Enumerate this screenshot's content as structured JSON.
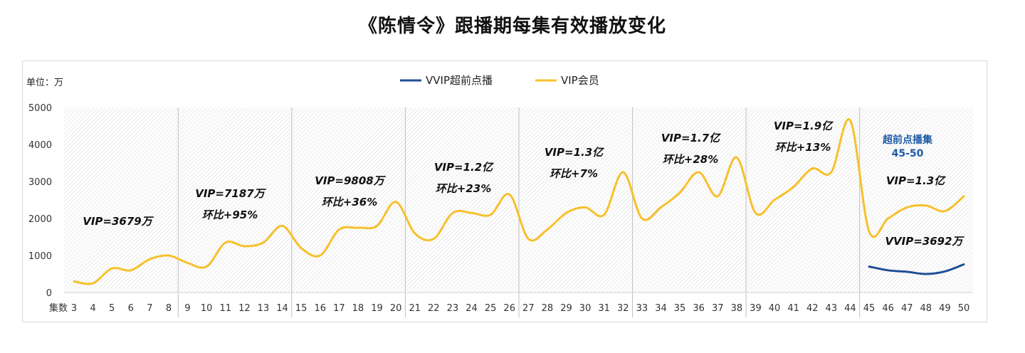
{
  "title": "《陈情令》跟播期每集有效播放变化",
  "chart_data": {
    "type": "line",
    "unit_label": "单位：万",
    "xlabel_prefix": "集数",
    "ylim": [
      0,
      5000
    ],
    "yticks": [
      0,
      1000,
      2000,
      3000,
      4000,
      5000
    ],
    "legend": {
      "placement": "top-center"
    },
    "categories": [
      3,
      4,
      5,
      6,
      7,
      8,
      9,
      10,
      11,
      12,
      13,
      14,
      15,
      16,
      17,
      18,
      19,
      20,
      21,
      22,
      23,
      24,
      25,
      26,
      27,
      28,
      29,
      30,
      31,
      32,
      33,
      34,
      35,
      36,
      37,
      38,
      39,
      40,
      41,
      42,
      43,
      44,
      45,
      46,
      47,
      48,
      49,
      50
    ],
    "series": [
      {
        "name": "VVIP超前点播",
        "color": "#1f4e96",
        "values": [
          null,
          null,
          null,
          null,
          null,
          null,
          null,
          null,
          null,
          null,
          null,
          null,
          null,
          null,
          null,
          null,
          null,
          null,
          null,
          null,
          null,
          null,
          null,
          null,
          null,
          null,
          null,
          null,
          null,
          null,
          null,
          null,
          null,
          null,
          null,
          null,
          null,
          null,
          null,
          null,
          null,
          null,
          700,
          600,
          560,
          500,
          570,
          760
        ]
      },
      {
        "name": "VIP会员",
        "color": "#f7c02c",
        "values": [
          300,
          250,
          650,
          600,
          900,
          1000,
          800,
          700,
          1350,
          1250,
          1350,
          1800,
          1200,
          1000,
          1700,
          1750,
          1800,
          2450,
          1600,
          1450,
          2150,
          2150,
          2100,
          2650,
          1450,
          1700,
          2150,
          2300,
          2100,
          3250,
          2000,
          2300,
          2700,
          3250,
          2600,
          3650,
          2150,
          2500,
          2850,
          3350,
          3250,
          4650,
          1650,
          2000,
          2300,
          2350,
          2200,
          2600
        ]
      }
    ],
    "group_boundaries_after": [
      8,
      14,
      20,
      26,
      32,
      38,
      44
    ],
    "annotations": [
      {
        "lines": [
          "VIP=3679万"
        ],
        "style": "black",
        "group": 0
      },
      {
        "lines": [
          "VIP=7187万",
          "环比+95%"
        ],
        "style": "black",
        "group": 1
      },
      {
        "lines": [
          "VIP=9808万",
          "环比+36%"
        ],
        "style": "black",
        "group": 2
      },
      {
        "lines": [
          "VIP=1.2亿",
          "环比+23%"
        ],
        "style": "black",
        "group": 3
      },
      {
        "lines": [
          "VIP=1.3亿",
          "环比+7%"
        ],
        "style": "black",
        "group": 4
      },
      {
        "lines": [
          "VIP=1.7亿",
          "环比+28%"
        ],
        "style": "black",
        "group": 5
      },
      {
        "lines": [
          "VIP=1.9亿",
          "环比+13%"
        ],
        "style": "black",
        "group": 6
      },
      {
        "lines": [
          "超前点播集",
          "45-50"
        ],
        "style": "blue",
        "group": 7
      },
      {
        "lines": [
          "VIP=1.3亿"
        ],
        "style": "black",
        "group": 7,
        "id": "vip-last"
      },
      {
        "lines": [
          "VVIP=3692万"
        ],
        "style": "black",
        "group": 7,
        "id": "vvip-last"
      }
    ]
  }
}
